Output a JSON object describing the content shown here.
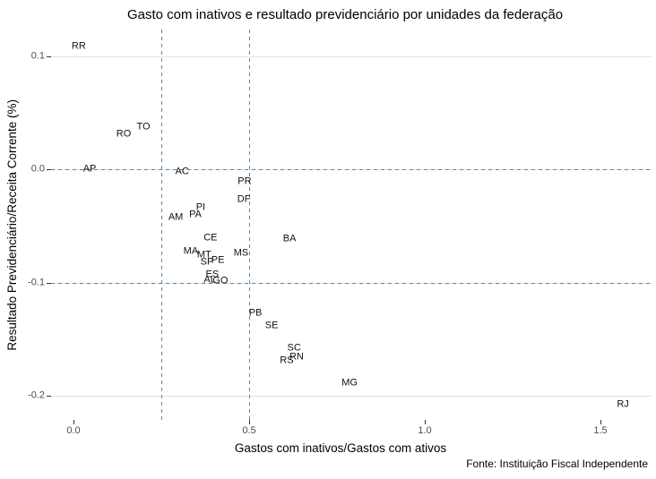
{
  "title": "Gasto com inativos e resultado previdenciário por unidades da federação",
  "source_note": "Fonte: Instituição Fiscal Independente",
  "chart_data": {
    "type": "scatter",
    "point_style": "text-labels-only",
    "title": "Gasto com inativos e resultado previdenciário por unidades da federação",
    "xlabel": "Gastos com inativos/Gastos com ativos",
    "ylabel": "Resultado Previdenciário/Receita Corrente (%)",
    "xlim": [
      -0.064,
      1.645
    ],
    "ylim": [
      -0.221,
      0.123
    ],
    "grid": "horizontal-major-only",
    "legend": "none",
    "x_ticks": {
      "labels": [
        "0.0",
        "0.5",
        "1.0",
        "1.5"
      ],
      "values": [
        0.0,
        0.5,
        1.0,
        1.5
      ]
    },
    "y_ticks": {
      "labels": [
        "0.1",
        "0.0",
        "-0.1",
        "-0.2"
      ],
      "values": [
        0.1,
        0.0,
        -0.1,
        -0.2
      ]
    },
    "reference_lines": {
      "horizontal_dashed": [
        0.0,
        -0.1
      ],
      "vertical_dashed": [
        0.25,
        0.5
      ]
    },
    "colors": {
      "reference_line": "#5b86a0",
      "gridline": "#e2e2e2",
      "point_text": "#111111",
      "tick_text": "#4d4d4d",
      "axis_text": "#000000"
    },
    "points": [
      {
        "label": "RR",
        "x": 0.015,
        "y": 0.108
      },
      {
        "label": "RO",
        "x": 0.143,
        "y": 0.031
      },
      {
        "label": "TO",
        "x": 0.199,
        "y": 0.037
      },
      {
        "label": "AP",
        "x": 0.046,
        "y": 0.0
      },
      {
        "label": "AC",
        "x": 0.309,
        "y": -0.002
      },
      {
        "label": "PR",
        "x": 0.487,
        "y": -0.011
      },
      {
        "label": "DF",
        "x": 0.485,
        "y": -0.027
      },
      {
        "label": "PI",
        "x": 0.362,
        "y": -0.034
      },
      {
        "label": "PA",
        "x": 0.347,
        "y": -0.04
      },
      {
        "label": "AM",
        "x": 0.291,
        "y": -0.043
      },
      {
        "label": "CE",
        "x": 0.39,
        "y": -0.061
      },
      {
        "label": "BA",
        "x": 0.615,
        "y": -0.062
      },
      {
        "label": "MA",
        "x": 0.334,
        "y": -0.073
      },
      {
        "label": "MT",
        "x": 0.372,
        "y": -0.076
      },
      {
        "label": "MS",
        "x": 0.477,
        "y": -0.074
      },
      {
        "label": "SP",
        "x": 0.38,
        "y": -0.082
      },
      {
        "label": "PE",
        "x": 0.411,
        "y": -0.081
      },
      {
        "label": "ES",
        "x": 0.395,
        "y": -0.093
      },
      {
        "label": "AL",
        "x": 0.388,
        "y": -0.098
      },
      {
        "label": "GO",
        "x": 0.418,
        "y": -0.099
      },
      {
        "label": "PB",
        "x": 0.518,
        "y": -0.127
      },
      {
        "label": "SE",
        "x": 0.564,
        "y": -0.138
      },
      {
        "label": "SC",
        "x": 0.628,
        "y": -0.158
      },
      {
        "label": "RN",
        "x": 0.635,
        "y": -0.166
      },
      {
        "label": "RS",
        "x": 0.607,
        "y": -0.169
      },
      {
        "label": "MG",
        "x": 0.786,
        "y": -0.189
      },
      {
        "label": "RJ",
        "x": 1.564,
        "y": -0.208
      }
    ]
  }
}
